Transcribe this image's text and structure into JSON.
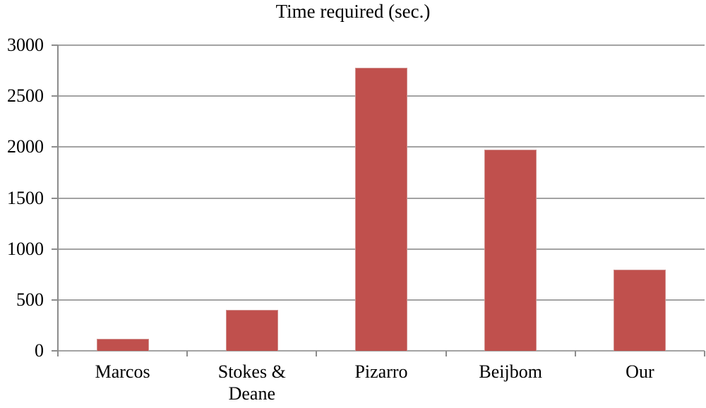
{
  "chart_data": {
    "type": "bar",
    "title": "Time required (sec.)",
    "categories": [
      "Marcos",
      "Stokes & Deane",
      "Pizarro",
      "Beijbom",
      "Our"
    ],
    "values": [
      120,
      405,
      2780,
      1975,
      795
    ],
    "xlabel": "",
    "ylabel": "",
    "ylim": [
      0,
      3000
    ],
    "ytick_interval": 500,
    "ytick_labels": [
      "0",
      "500",
      "1000",
      "1500",
      "2000",
      "2500",
      "3000"
    ],
    "grid": "horizontal",
    "legend_position": "none",
    "colors": {
      "bar_fill": "#C0504D",
      "bar_edge": "#D possibile",
      "gridline": "#A3A3A3",
      "axis": "#8C8C8C",
      "text": "#000000",
      "background": "#FFFFFF"
    }
  }
}
